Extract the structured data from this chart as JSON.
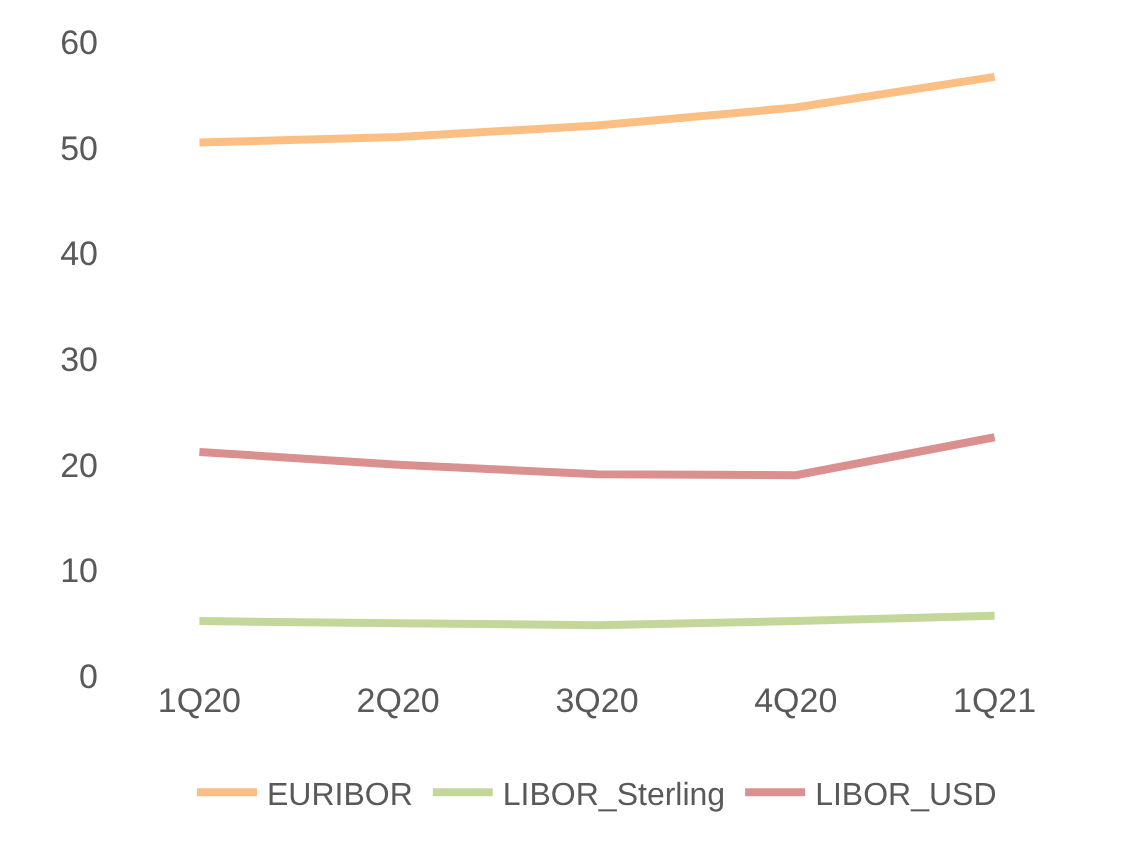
{
  "chart_data": {
    "type": "line",
    "categories": [
      "1Q20",
      "2Q20",
      "3Q20",
      "4Q20",
      "1Q21"
    ],
    "series": [
      {
        "name": "EURIBOR",
        "color": "#fbbf84",
        "values": [
          50.5,
          51.0,
          52.1,
          53.8,
          56.7
        ]
      },
      {
        "name": "LIBOR_Sterling",
        "color": "#c4d79b",
        "values": [
          5.2,
          5.0,
          4.8,
          5.2,
          5.7
        ]
      },
      {
        "name": "LIBOR_USD",
        "color": "#d9908f",
        "values": [
          21.2,
          20.0,
          19.1,
          19.0,
          22.6
        ]
      }
    ],
    "ylim": [
      0,
      60
    ],
    "yticks": [
      0,
      10,
      20,
      30,
      40,
      50,
      60
    ],
    "legend": "bottom",
    "marker": "none",
    "line_style": "solid"
  }
}
